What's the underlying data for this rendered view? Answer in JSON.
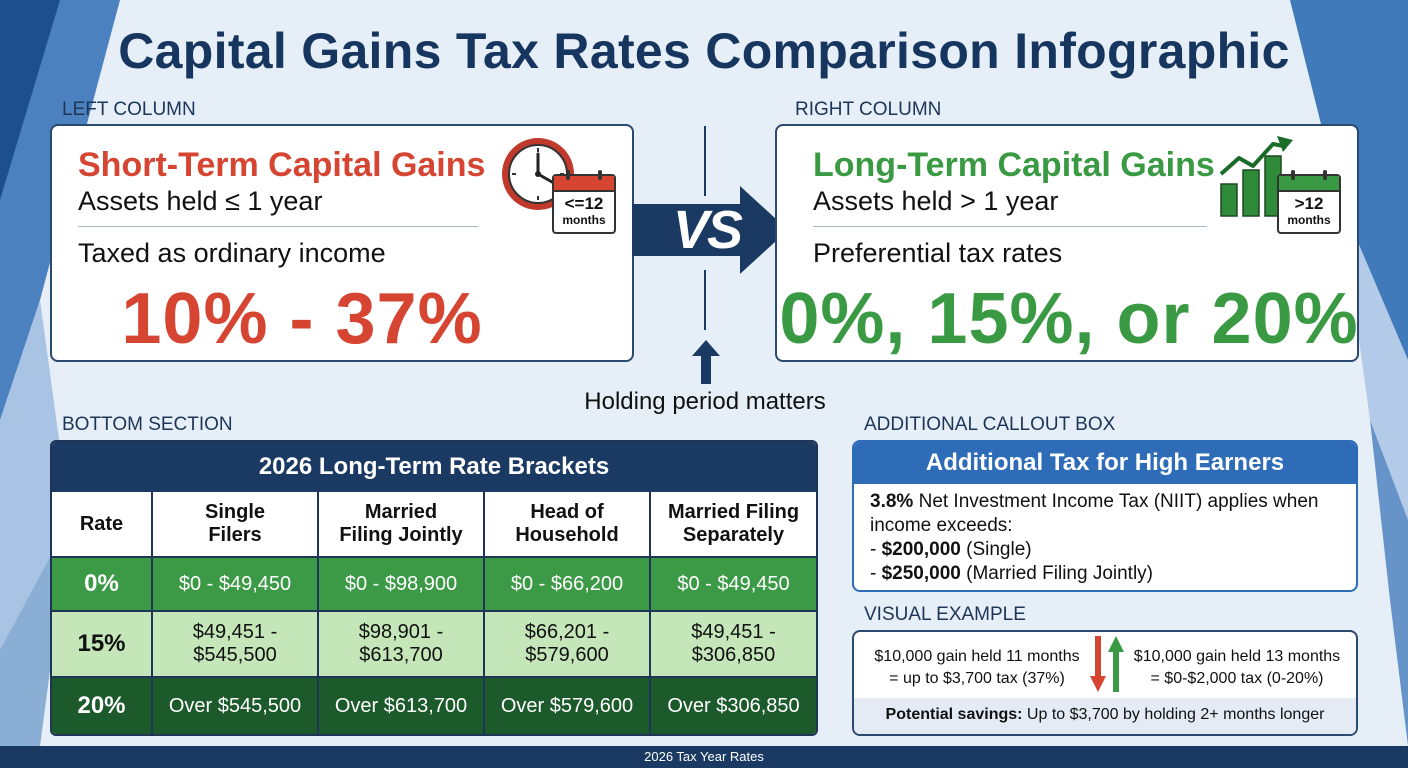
{
  "title": "Capital Gains Tax Rates Comparison Infographic",
  "left": {
    "section_label": "LEFT COLUMN",
    "heading": "Short-Term Capital Gains",
    "held": "Assets held ≤ 1 year",
    "taxed": "Taxed as ordinary income",
    "rate": "10% - 37%",
    "calendar_line1": "<=12",
    "calendar_line2": "months",
    "accent": "#d64532",
    "icons": [
      "clock-icon",
      "calendar-icon"
    ]
  },
  "right": {
    "section_label": "RIGHT COLUMN",
    "heading": "Long-Term Capital Gains",
    "held": "Assets held > 1 year",
    "taxed": "Preferential tax rates",
    "rate": "0%, 15%, or 20%",
    "calendar_line1": ">12",
    "calendar_line2": "months",
    "accent": "#3a9a43",
    "icons": [
      "bar-chart-growth-icon",
      "calendar-icon"
    ]
  },
  "center": {
    "vs": "VS",
    "holding": "Holding period matters",
    "icons": [
      "right-arrow-icon",
      "up-arrow-icon"
    ]
  },
  "bottom": {
    "section_label": "BOTTOM SECTION",
    "table_title": "2026 Long-Term Rate Brackets",
    "headers": [
      [
        "Rate"
      ],
      [
        "Single",
        "Filers"
      ],
      [
        "Married",
        "Filing Jointly"
      ],
      [
        "Head of",
        "Household"
      ],
      [
        "Married Filing",
        "Separately"
      ]
    ],
    "rows": [
      {
        "rate": "0%",
        "cells": [
          [
            "$0 - $49,450"
          ],
          [
            "$0 - $98,900"
          ],
          [
            "$0 - $66,200"
          ],
          [
            "$0 - $49,450"
          ]
        ]
      },
      {
        "rate": "15%",
        "cells": [
          [
            "$49,451 -",
            "$545,500"
          ],
          [
            "$98,901 -",
            "$613,700"
          ],
          [
            "$66,201 -",
            "$579,600"
          ],
          [
            "$49,451 -",
            "$306,850"
          ]
        ]
      },
      {
        "rate": "20%",
        "cells": [
          [
            "Over $545,500"
          ],
          [
            "Over $613,700"
          ],
          [
            "Over $579,600"
          ],
          [
            "Over $306,850"
          ]
        ]
      }
    ]
  },
  "callout": {
    "section_label": "ADDITIONAL CALLOUT BOX",
    "title": "Additional Tax for High Earners",
    "rate_bold": "3.8%",
    "line1_rest": " Net Investment Income Tax (NIIT) applies when",
    "line2": "income exceeds:",
    "items": [
      {
        "prefix": "- ",
        "amount": "$200,000",
        "label": " (Single)"
      },
      {
        "prefix": "- ",
        "amount": "$250,000",
        "label": " (Married Filing Jointly)"
      }
    ]
  },
  "example": {
    "section_label": "VISUAL EXAMPLE",
    "left_line1": "$10,000 gain held 11 months",
    "left_line2": "= up to $3,700 tax (37%)",
    "right_line1": "$10,000 gain held 13 months",
    "right_line2": "= $0-$2,000 tax (0-20%)",
    "savings_bold": "Potential savings:",
    "savings_rest": " Up to $3,700 by holding 2+ months longer",
    "icons": [
      "down-arrow-red-icon",
      "up-arrow-green-icon"
    ]
  },
  "footer": "2026 Tax Year Rates",
  "colors": {
    "navy": "#1b3a63",
    "red": "#d64532",
    "green": "#3a9a43",
    "callout_blue": "#2e6cb8"
  }
}
